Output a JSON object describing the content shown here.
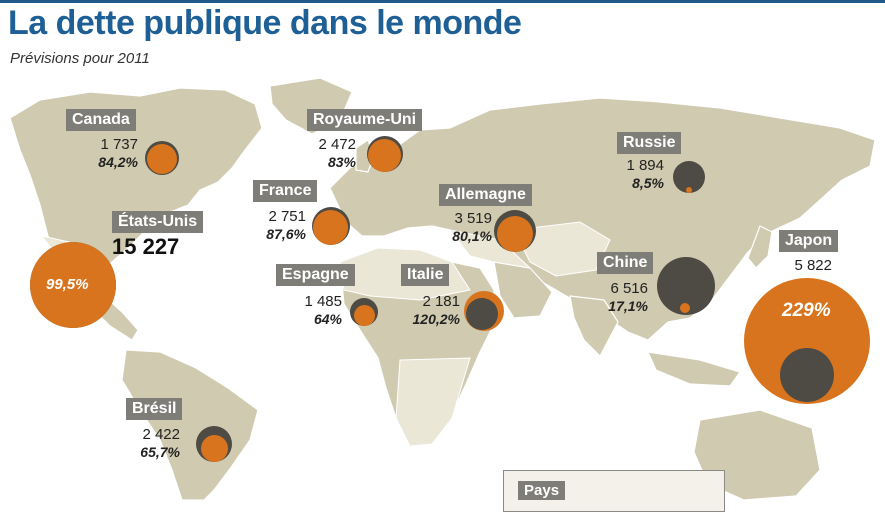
{
  "header": {
    "title": "La dette publique dans le monde",
    "subtitle": "Prévisions pour 2011"
  },
  "colors": {
    "accent": "#1e5f96",
    "land": "#cfcab0",
    "debt_ratio": "#d8741e",
    "debt_amount": "#4e4a44",
    "label_bg": "#7e7d77"
  },
  "countries": {
    "canada": {
      "name": "Canada",
      "value": "1 737",
      "pct": "84,2%"
    },
    "usa": {
      "name": "États-Unis",
      "value": "15 227",
      "pct": "99,5%"
    },
    "royaume_uni": {
      "name": "Royaume-Uni",
      "value": "2 472",
      "pct": "83%"
    },
    "france": {
      "name": "France",
      "value": "2 751",
      "pct": "87,6%"
    },
    "allemagne": {
      "name": "Allemagne",
      "value": "3 519",
      "pct": "80,1%"
    },
    "espagne": {
      "name": "Espagne",
      "value": "1 485",
      "pct": "64%"
    },
    "italie": {
      "name": "Italie",
      "value": "2 181",
      "pct": "120,2%"
    },
    "russie": {
      "name": "Russie",
      "value": "1 894",
      "pct": "8,5%"
    },
    "chine": {
      "name": "Chine",
      "value": "6 516",
      "pct": "17,1%"
    },
    "japon": {
      "name": "Japon",
      "value": "5 822",
      "pct": "229%"
    },
    "bresil": {
      "name": "Brésil",
      "value": "2 422",
      "pct": "65,7%"
    }
  },
  "legend": {
    "title": "Pays"
  }
}
